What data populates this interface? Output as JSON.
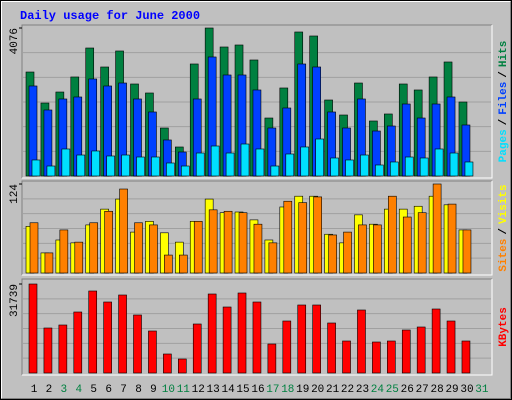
{
  "title": "Daily usage for June 2000",
  "legend_separator": "/",
  "x_axis": {
    "categories": [
      "1",
      "2",
      "3",
      "4",
      "5",
      "6",
      "7",
      "8",
      "9",
      "10",
      "11",
      "12",
      "13",
      "14",
      "15",
      "16",
      "17",
      "18",
      "19",
      "20",
      "21",
      "22",
      "23",
      "24",
      "25",
      "26",
      "27",
      "28",
      "29",
      "30",
      "31"
    ],
    "label_colors": [
      "#000000",
      "#000000",
      "#008040",
      "#008040",
      "#000000",
      "#000000",
      "#000000",
      "#000000",
      "#000000",
      "#008040",
      "#008040",
      "#000000",
      "#000000",
      "#000000",
      "#000000",
      "#000000",
      "#008040",
      "#008040",
      "#000000",
      "#000000",
      "#000000",
      "#000000",
      "#000000",
      "#008040",
      "#008040",
      "#000000",
      "#000000",
      "#000000",
      "#000000",
      "#000000",
      "#008040"
    ]
  },
  "chart_data": [
    {
      "type": "bar",
      "ylim": [
        0,
        4076
      ],
      "yticks": [
        4076
      ],
      "series": [
        {
          "name": "Hits",
          "color": "#008040",
          "values": [
            2864,
            2010,
            2313,
            2727,
            3525,
            3002,
            3443,
            2534,
            2286,
            1322,
            799,
            3085,
            4076,
            3553,
            3608,
            3195,
            1597,
            2424,
            3966,
            3856,
            2093,
            1680,
            2561,
            1515,
            1708,
            2534,
            2369,
            2727,
            3140,
            2038,
            0
          ]
        },
        {
          "name": "Files",
          "color": "#0040ff",
          "values": [
            2479,
            1818,
            2121,
            2176,
            2672,
            2479,
            2561,
            2121,
            1763,
            992,
            661,
            2121,
            3278,
            2782,
            2782,
            2369,
            1322,
            1873,
            3085,
            3002,
            1763,
            1322,
            2121,
            1239,
            1377,
            1983,
            1597,
            1983,
            2176,
            1405,
            0
          ]
        },
        {
          "name": "Pages",
          "color": "#00e0ff",
          "values": [
            441,
            275,
            744,
            578,
            689,
            551,
            578,
            523,
            523,
            358,
            275,
            633,
            826,
            633,
            881,
            744,
            275,
            606,
            799,
            1019,
            496,
            441,
            578,
            303,
            386,
            523,
            496,
            744,
            633,
            386,
            0
          ]
        }
      ]
    },
    {
      "type": "bar",
      "ylim": [
        0,
        124
      ],
      "yticks": [
        124
      ],
      "series": [
        {
          "name": "Visits",
          "color": "#ffff00",
          "values": [
            65,
            28,
            46,
            42,
            67,
            89,
            103,
            57,
            72,
            56,
            43,
            72,
            103,
            84,
            85,
            74,
            46,
            92,
            107,
            107,
            54,
            42,
            81,
            68,
            89,
            89,
            93,
            107,
            95,
            60,
            0
          ]
        },
        {
          "name": "Sites",
          "color": "#ff8000",
          "values": [
            70,
            28,
            60,
            43,
            70,
            86,
            117,
            70,
            67,
            25,
            25,
            72,
            88,
            86,
            84,
            68,
            42,
            100,
            98,
            106,
            53,
            57,
            67,
            67,
            107,
            78,
            84,
            124,
            96,
            60,
            0
          ]
        }
      ]
    },
    {
      "type": "bar",
      "ylim": [
        0,
        31739
      ],
      "yticks": [
        31739
      ],
      "series": [
        {
          "name": "KBytes",
          "color": "#ff0000",
          "values": [
            31739,
            16048,
            17118,
            21754,
            29243,
            25320,
            27817,
            20684,
            14978,
            6776,
            4993,
            17475,
            28173,
            23537,
            28530,
            25320,
            10342,
            18544,
            24250,
            24250,
            17831,
            11412,
            22467,
            11055,
            11412,
            15335,
            16405,
            22824,
            18544,
            11412,
            0
          ]
        }
      ]
    }
  ]
}
